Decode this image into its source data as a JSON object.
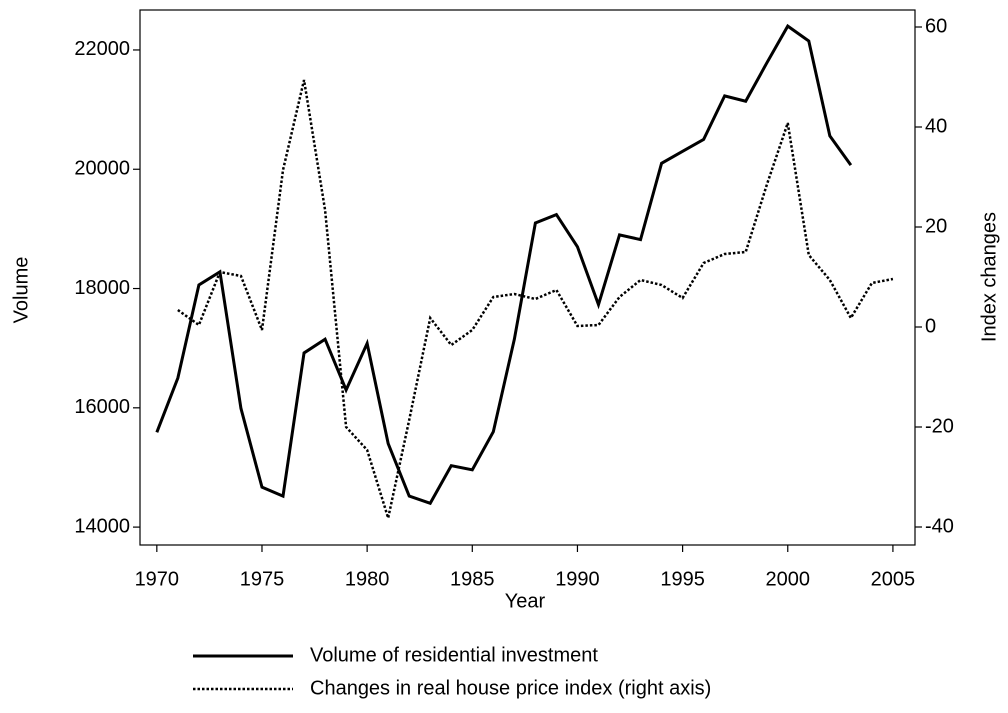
{
  "chart_data": {
    "type": "line",
    "x_label": "Year",
    "y_label": "Volume",
    "y2_label": "Index changes",
    "x": [
      1970,
      1971,
      1972,
      1973,
      1974,
      1975,
      1976,
      1977,
      1978,
      1979,
      1980,
      1981,
      1982,
      1983,
      1984,
      1985,
      1986,
      1987,
      1988,
      1989,
      1990,
      1991,
      1992,
      1993,
      1994,
      1995,
      1996,
      1997,
      1998,
      1999,
      2000,
      2001,
      2002,
      2003,
      2004,
      2005
    ],
    "xlim": [
      1969.2,
      2006.05
    ],
    "xticks": [
      1970,
      1975,
      1980,
      1985,
      1990,
      1995,
      2000,
      2005
    ],
    "ylim": [
      13700,
      22670
    ],
    "yticks": [
      14000,
      16000,
      18000,
      20000,
      22000
    ],
    "y2lim": [
      -43.6,
      63.4
    ],
    "y2ticks": [
      -40,
      -20,
      0,
      20,
      40,
      60
    ],
    "series": [
      {
        "name": "Volume of residential investment",
        "color": "#000000",
        "dash": "solid",
        "values": [
          15590,
          16500,
          18060,
          18280,
          15990,
          14670,
          14520,
          16920,
          17150,
          16300,
          17080,
          15400,
          14520,
          14400,
          15030,
          14960,
          15600,
          17150,
          19100,
          19240,
          18700,
          17730,
          18900,
          18820,
          20100,
          20300,
          20500,
          21230,
          21140,
          21780,
          22400,
          22150,
          20560,
          20070,
          null,
          null
        ]
      },
      {
        "name": "Changes in real house price index (right axis)",
        "color": "#000000",
        "dash": "dotted",
        "axis": "y2",
        "values": [
          null,
          3.4,
          0.4,
          11,
          10.2,
          -0.6,
          31.4,
          49.4,
          23.4,
          -20,
          -24.6,
          -38.2,
          -18.6,
          1.8,
          -3.6,
          -0.6,
          6,
          6.6,
          5.6,
          7.4,
          0.2,
          0.4,
          6,
          9.4,
          8.4,
          5.8,
          12.8,
          14.6,
          15,
          28.4,
          40.8,
          14.4,
          9.4,
          1.8,
          8.8,
          9.6
        ]
      }
    ]
  }
}
